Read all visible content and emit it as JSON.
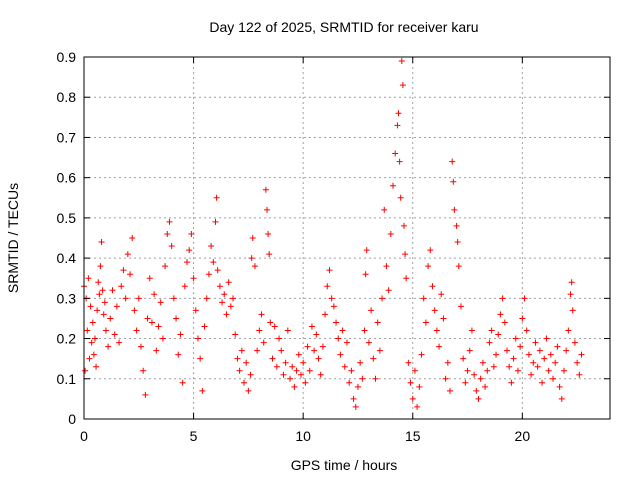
{
  "chart_data": {
    "type": "scatter",
    "title": "Day 122 of 2025, SRMTID for receiver karu",
    "xlabel": "GPS time / hours",
    "ylabel": "SRMTID / TECUs",
    "xlim": [
      0,
      24
    ],
    "ylim": [
      0,
      0.9
    ],
    "x_ticks": [
      0,
      5,
      10,
      15,
      20
    ],
    "x_tick_labels": [
      "0",
      "5",
      "10",
      "15",
      "20"
    ],
    "y_ticks": [
      0,
      0.1,
      0.2,
      0.3,
      0.4,
      0.5,
      0.6,
      0.7,
      0.8,
      0.9
    ],
    "y_tick_labels": [
      "0",
      "0.1",
      "0.2",
      "0.3",
      "0.4",
      "0.5",
      "0.6",
      "0.7",
      "0.8",
      "0.9"
    ],
    "grid": true,
    "marker": "+",
    "color": "#ff0000",
    "series": [
      {
        "name": "SRMTID",
        "points": [
          [
            0.0,
            0.33
          ],
          [
            0.05,
            0.12
          ],
          [
            0.1,
            0.3
          ],
          [
            0.15,
            0.22
          ],
          [
            0.2,
            0.35
          ],
          [
            0.25,
            0.15
          ],
          [
            0.3,
            0.28
          ],
          [
            0.35,
            0.19
          ],
          [
            0.4,
            0.24
          ],
          [
            0.45,
            0.16
          ],
          [
            0.5,
            0.2
          ],
          [
            0.55,
            0.13
          ],
          [
            0.6,
            0.27
          ],
          [
            0.65,
            0.34
          ],
          [
            0.7,
            0.31
          ],
          [
            0.75,
            0.38
          ],
          [
            0.8,
            0.44
          ],
          [
            0.85,
            0.32
          ],
          [
            0.9,
            0.26
          ],
          [
            0.95,
            0.29
          ],
          [
            1.0,
            0.22
          ],
          [
            1.1,
            0.18
          ],
          [
            1.2,
            0.25
          ],
          [
            1.3,
            0.32
          ],
          [
            1.4,
            0.21
          ],
          [
            1.5,
            0.28
          ],
          [
            1.6,
            0.19
          ],
          [
            1.7,
            0.33
          ],
          [
            1.8,
            0.37
          ],
          [
            1.9,
            0.3
          ],
          [
            2.0,
            0.41
          ],
          [
            2.1,
            0.36
          ],
          [
            2.2,
            0.45
          ],
          [
            2.3,
            0.27
          ],
          [
            2.4,
            0.22
          ],
          [
            2.5,
            0.3
          ],
          [
            2.6,
            0.18
          ],
          [
            2.7,
            0.12
          ],
          [
            2.8,
            0.06
          ],
          [
            2.9,
            0.25
          ],
          [
            3.0,
            0.35
          ],
          [
            3.1,
            0.24
          ],
          [
            3.2,
            0.31
          ],
          [
            3.3,
            0.17
          ],
          [
            3.4,
            0.23
          ],
          [
            3.5,
            0.29
          ],
          [
            3.6,
            0.2
          ],
          [
            3.7,
            0.38
          ],
          [
            3.8,
            0.46
          ],
          [
            3.9,
            0.49
          ],
          [
            4.0,
            0.43
          ],
          [
            4.1,
            0.3
          ],
          [
            4.2,
            0.25
          ],
          [
            4.3,
            0.16
          ],
          [
            4.4,
            0.21
          ],
          [
            4.5,
            0.09
          ],
          [
            4.6,
            0.33
          ],
          [
            4.7,
            0.39
          ],
          [
            4.8,
            0.42
          ],
          [
            4.9,
            0.46
          ],
          [
            5.0,
            0.35
          ],
          [
            5.1,
            0.27
          ],
          [
            5.2,
            0.2
          ],
          [
            5.3,
            0.15
          ],
          [
            5.4,
            0.07
          ],
          [
            5.5,
            0.23
          ],
          [
            5.6,
            0.3
          ],
          [
            5.7,
            0.36
          ],
          [
            5.8,
            0.43
          ],
          [
            5.9,
            0.39
          ],
          [
            6.0,
            0.49
          ],
          [
            6.05,
            0.55
          ],
          [
            6.1,
            0.37
          ],
          [
            6.2,
            0.33
          ],
          [
            6.3,
            0.29
          ],
          [
            6.4,
            0.31
          ],
          [
            6.5,
            0.26
          ],
          [
            6.6,
            0.34
          ],
          [
            6.7,
            0.28
          ],
          [
            6.8,
            0.3
          ],
          [
            6.9,
            0.21
          ],
          [
            7.0,
            0.15
          ],
          [
            7.1,
            0.12
          ],
          [
            7.2,
            0.17
          ],
          [
            7.3,
            0.09
          ],
          [
            7.4,
            0.14
          ],
          [
            7.5,
            0.07
          ],
          [
            7.6,
            0.11
          ],
          [
            7.65,
            0.4
          ],
          [
            7.7,
            0.45
          ],
          [
            7.8,
            0.38
          ],
          [
            7.9,
            0.17
          ],
          [
            8.0,
            0.22
          ],
          [
            8.1,
            0.26
          ],
          [
            8.2,
            0.19
          ],
          [
            8.3,
            0.57
          ],
          [
            8.35,
            0.52
          ],
          [
            8.4,
            0.46
          ],
          [
            8.45,
            0.41
          ],
          [
            8.5,
            0.24
          ],
          [
            8.6,
            0.15
          ],
          [
            8.7,
            0.23
          ],
          [
            8.8,
            0.13
          ],
          [
            8.9,
            0.2
          ],
          [
            9.0,
            0.17
          ],
          [
            9.1,
            0.11
          ],
          [
            9.2,
            0.14
          ],
          [
            9.3,
            0.22
          ],
          [
            9.4,
            0.1
          ],
          [
            9.5,
            0.13
          ],
          [
            9.6,
            0.08
          ],
          [
            9.7,
            0.12
          ],
          [
            9.8,
            0.16
          ],
          [
            9.9,
            0.11
          ],
          [
            10.0,
            0.14
          ],
          [
            10.1,
            0.09
          ],
          [
            10.2,
            0.18
          ],
          [
            10.3,
            0.12
          ],
          [
            10.4,
            0.23
          ],
          [
            10.5,
            0.17
          ],
          [
            10.6,
            0.21
          ],
          [
            10.7,
            0.15
          ],
          [
            10.8,
            0.11
          ],
          [
            10.9,
            0.18
          ],
          [
            11.0,
            0.26
          ],
          [
            11.1,
            0.33
          ],
          [
            11.2,
            0.37
          ],
          [
            11.3,
            0.3
          ],
          [
            11.4,
            0.28
          ],
          [
            11.5,
            0.24
          ],
          [
            11.6,
            0.2
          ],
          [
            11.7,
            0.16
          ],
          [
            11.8,
            0.22
          ],
          [
            11.9,
            0.13
          ],
          [
            12.0,
            0.19
          ],
          [
            12.1,
            0.09
          ],
          [
            12.2,
            0.12
          ],
          [
            12.3,
            0.05
          ],
          [
            12.4,
            0.03
          ],
          [
            12.5,
            0.08
          ],
          [
            12.6,
            0.14
          ],
          [
            12.7,
            0.1
          ],
          [
            12.8,
            0.22
          ],
          [
            12.85,
            0.36
          ],
          [
            12.9,
            0.42
          ],
          [
            13.0,
            0.19
          ],
          [
            13.1,
            0.27
          ],
          [
            13.2,
            0.15
          ],
          [
            13.3,
            0.1
          ],
          [
            13.4,
            0.24
          ],
          [
            13.5,
            0.17
          ],
          [
            13.6,
            0.3
          ],
          [
            13.7,
            0.52
          ],
          [
            13.8,
            0.38
          ],
          [
            13.9,
            0.32
          ],
          [
            14.0,
            0.46
          ],
          [
            14.1,
            0.58
          ],
          [
            14.2,
            0.66
          ],
          [
            14.3,
            0.73
          ],
          [
            14.35,
            0.76
          ],
          [
            14.4,
            0.64
          ],
          [
            14.45,
            0.55
          ],
          [
            14.5,
            0.89
          ],
          [
            14.55,
            0.83
          ],
          [
            14.6,
            0.48
          ],
          [
            14.65,
            0.41
          ],
          [
            14.7,
            0.35
          ],
          [
            14.8,
            0.14
          ],
          [
            14.9,
            0.09
          ],
          [
            15.0,
            0.05
          ],
          [
            15.1,
            0.12
          ],
          [
            15.2,
            0.03
          ],
          [
            15.3,
            0.08
          ],
          [
            15.4,
            0.16
          ],
          [
            15.5,
            0.3
          ],
          [
            15.6,
            0.24
          ],
          [
            15.7,
            0.38
          ],
          [
            15.8,
            0.42
          ],
          [
            15.9,
            0.33
          ],
          [
            16.0,
            0.27
          ],
          [
            16.1,
            0.22
          ],
          [
            16.2,
            0.18
          ],
          [
            16.3,
            0.31
          ],
          [
            16.4,
            0.25
          ],
          [
            16.5,
            0.1
          ],
          [
            16.6,
            0.14
          ],
          [
            16.7,
            0.07
          ],
          [
            16.8,
            0.64
          ],
          [
            16.85,
            0.59
          ],
          [
            16.9,
            0.52
          ],
          [
            17.0,
            0.48
          ],
          [
            17.05,
            0.44
          ],
          [
            17.1,
            0.38
          ],
          [
            17.2,
            0.28
          ],
          [
            17.3,
            0.15
          ],
          [
            17.4,
            0.09
          ],
          [
            17.5,
            0.12
          ],
          [
            17.6,
            0.17
          ],
          [
            17.7,
            0.22
          ],
          [
            17.8,
            0.11
          ],
          [
            17.9,
            0.07
          ],
          [
            18.0,
            0.05
          ],
          [
            18.1,
            0.1
          ],
          [
            18.2,
            0.14
          ],
          [
            18.3,
            0.08
          ],
          [
            18.4,
            0.12
          ],
          [
            18.5,
            0.19
          ],
          [
            18.6,
            0.22
          ],
          [
            18.7,
            0.13
          ],
          [
            18.8,
            0.16
          ],
          [
            18.9,
            0.21
          ],
          [
            19.0,
            0.26
          ],
          [
            19.1,
            0.3
          ],
          [
            19.2,
            0.24
          ],
          [
            19.3,
            0.17
          ],
          [
            19.4,
            0.13
          ],
          [
            19.5,
            0.09
          ],
          [
            19.6,
            0.15
          ],
          [
            19.7,
            0.2
          ],
          [
            19.8,
            0.12
          ],
          [
            19.9,
            0.18
          ],
          [
            20.0,
            0.25
          ],
          [
            20.1,
            0.3
          ],
          [
            20.2,
            0.22
          ],
          [
            20.3,
            0.16
          ],
          [
            20.4,
            0.11
          ],
          [
            20.5,
            0.14
          ],
          [
            20.6,
            0.19
          ],
          [
            20.7,
            0.13
          ],
          [
            20.8,
            0.17
          ],
          [
            20.9,
            0.09
          ],
          [
            21.0,
            0.15
          ],
          [
            21.1,
            0.2
          ],
          [
            21.2,
            0.12
          ],
          [
            21.3,
            0.16
          ],
          [
            21.4,
            0.1
          ],
          [
            21.5,
            0.14
          ],
          [
            21.6,
            0.18
          ],
          [
            21.7,
            0.08
          ],
          [
            21.8,
            0.05
          ],
          [
            21.9,
            0.12
          ],
          [
            22.0,
            0.17
          ],
          [
            22.1,
            0.22
          ],
          [
            22.2,
            0.31
          ],
          [
            22.25,
            0.34
          ],
          [
            22.3,
            0.27
          ],
          [
            22.4,
            0.19
          ],
          [
            22.5,
            0.14
          ],
          [
            22.6,
            0.11
          ],
          [
            22.7,
            0.16
          ]
        ]
      }
    ]
  }
}
